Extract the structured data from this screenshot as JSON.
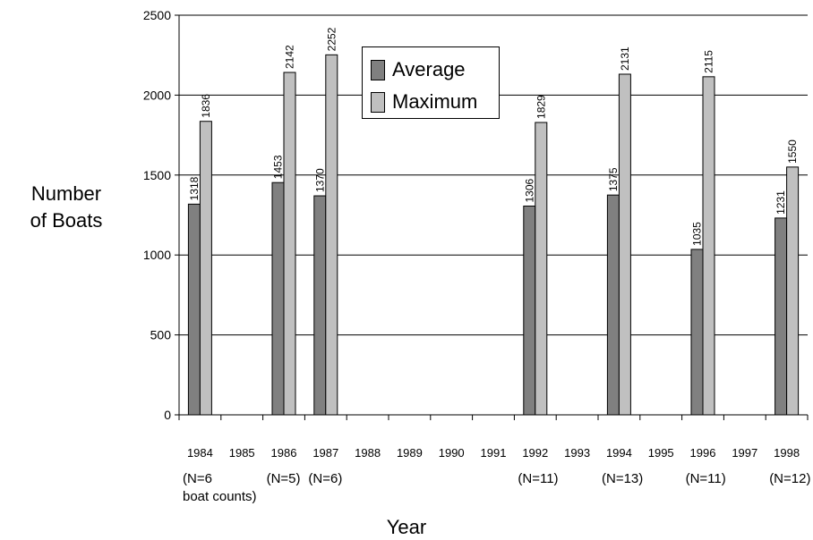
{
  "chart_data": {
    "type": "bar",
    "title": "",
    "ylabel_line1": "Number",
    "ylabel_line2": "of Boats",
    "xlabel": "Year",
    "ylim": [
      0,
      2500
    ],
    "yticks": [
      0,
      500,
      1000,
      1500,
      2000,
      2500
    ],
    "categories": [
      "1984",
      "1985",
      "1986",
      "1987",
      "1988",
      "1989",
      "1990",
      "1991",
      "1992",
      "1993",
      "1994",
      "1995",
      "1996",
      "1997",
      "1998"
    ],
    "series": [
      {
        "name": "Average",
        "color": "#808080",
        "values": [
          1318,
          null,
          1453,
          1370,
          null,
          null,
          null,
          null,
          1306,
          null,
          1375,
          null,
          1035,
          null,
          1231
        ]
      },
      {
        "name": "Maximum",
        "color": "#c0c0c0",
        "values": [
          1836,
          null,
          2142,
          2252,
          null,
          null,
          null,
          null,
          1829,
          null,
          2131,
          null,
          2115,
          null,
          1550
        ]
      }
    ],
    "data_labels": {
      "Average": [
        "1318",
        "",
        "1453",
        "1370",
        "",
        "",
        "",
        "",
        "1306",
        "",
        "1375",
        "",
        "1035",
        "",
        "1231"
      ],
      "Maximum": [
        "1836",
        "",
        "2142",
        "2252",
        "",
        "",
        "",
        "",
        "1829",
        "",
        "2131",
        "",
        "2115",
        "",
        "1550"
      ]
    },
    "gridlines": "horizontal",
    "legend": "top-center",
    "notes": [
      {
        "category": "1984",
        "text": "(N=6"
      },
      {
        "category": "1986",
        "text": "(N=5)"
      },
      {
        "category": "1987",
        "text": "(N=6)"
      },
      {
        "category": "1992",
        "text": "(N=11)"
      },
      {
        "category": "1994",
        "text": "(N=13)"
      },
      {
        "category": "1996",
        "text": "(N=11)"
      },
      {
        "category": "1998",
        "text": "(N=12)"
      }
    ],
    "note_extra": "boat counts)"
  }
}
